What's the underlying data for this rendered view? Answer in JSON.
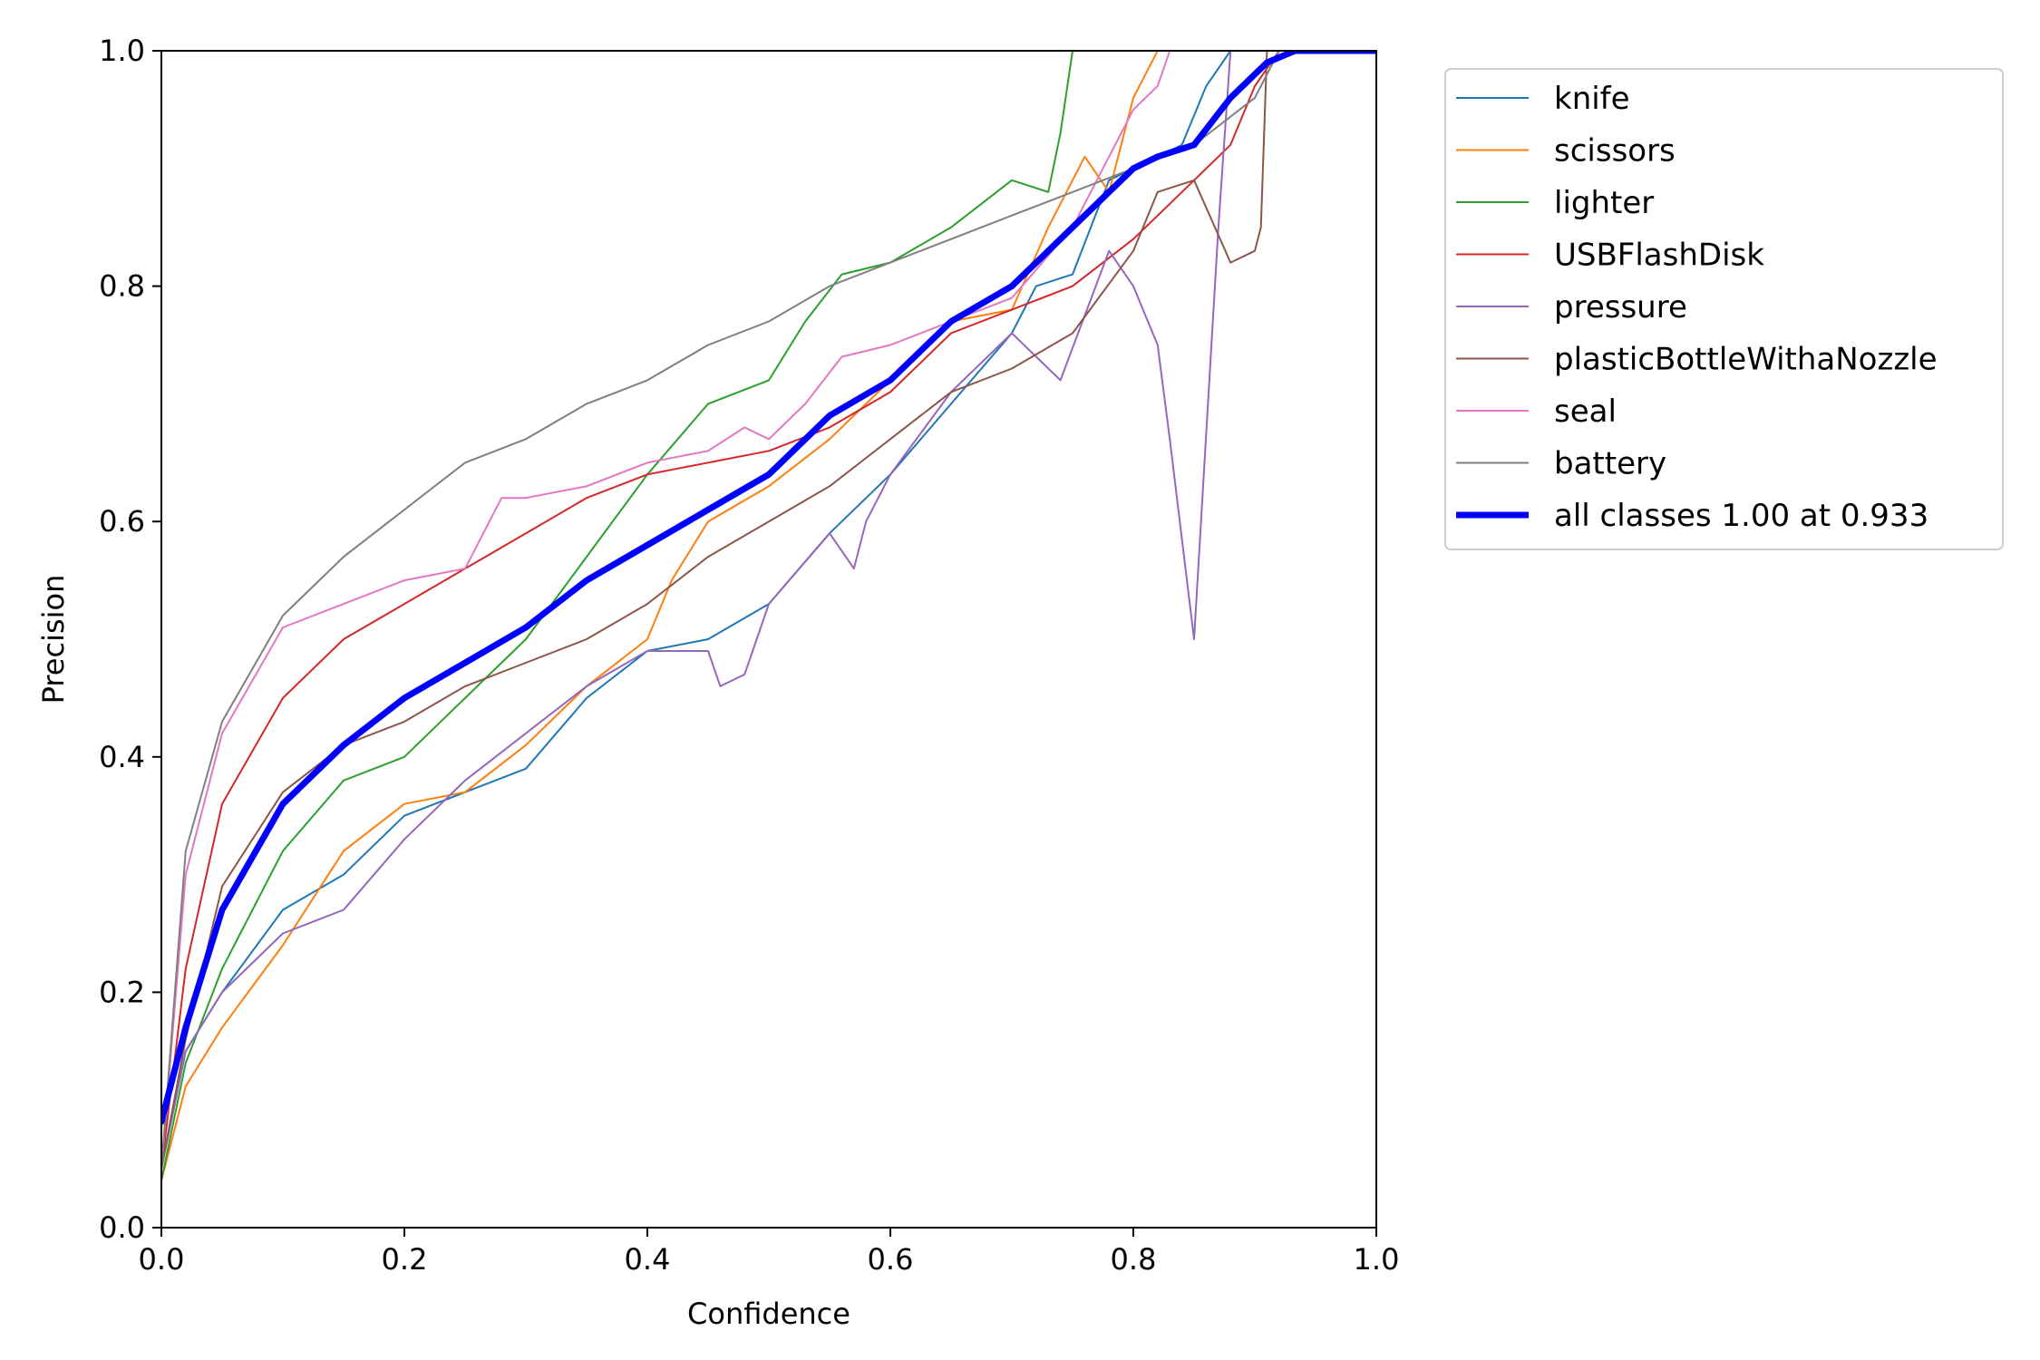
{
  "chart_data": {
    "type": "line",
    "xlabel": "Confidence",
    "ylabel": "Precision",
    "xlim": [
      0,
      1
    ],
    "ylim": [
      0,
      1
    ],
    "xticks": [
      "0.0",
      "0.2",
      "0.4",
      "0.6",
      "0.8",
      "1.0"
    ],
    "yticks": [
      "0.0",
      "0.2",
      "0.4",
      "0.6",
      "0.8",
      "1.0"
    ],
    "grid": false,
    "legend_position": "outside-right-top",
    "series": [
      {
        "name": "knife",
        "color": "#1f77b4",
        "width": 2,
        "points": [
          [
            0,
            0.05
          ],
          [
            0.02,
            0.15
          ],
          [
            0.05,
            0.2
          ],
          [
            0.1,
            0.27
          ],
          [
            0.15,
            0.3
          ],
          [
            0.2,
            0.35
          ],
          [
            0.25,
            0.37
          ],
          [
            0.3,
            0.39
          ],
          [
            0.35,
            0.45
          ],
          [
            0.4,
            0.49
          ],
          [
            0.45,
            0.5
          ],
          [
            0.5,
            0.53
          ],
          [
            0.55,
            0.59
          ],
          [
            0.6,
            0.64
          ],
          [
            0.65,
            0.7
          ],
          [
            0.7,
            0.76
          ],
          [
            0.72,
            0.8
          ],
          [
            0.75,
            0.81
          ],
          [
            0.78,
            0.89
          ],
          [
            0.8,
            0.9
          ],
          [
            0.84,
            0.92
          ],
          [
            0.86,
            0.97
          ],
          [
            0.88,
            1.0
          ],
          [
            1.0,
            1.0
          ]
        ]
      },
      {
        "name": "scissors",
        "color": "#ff7f0e",
        "width": 2,
        "points": [
          [
            0,
            0.04
          ],
          [
            0.02,
            0.12
          ],
          [
            0.05,
            0.17
          ],
          [
            0.1,
            0.24
          ],
          [
            0.15,
            0.32
          ],
          [
            0.2,
            0.36
          ],
          [
            0.25,
            0.37
          ],
          [
            0.3,
            0.41
          ],
          [
            0.35,
            0.46
          ],
          [
            0.4,
            0.5
          ],
          [
            0.42,
            0.55
          ],
          [
            0.45,
            0.6
          ],
          [
            0.5,
            0.63
          ],
          [
            0.55,
            0.67
          ],
          [
            0.6,
            0.72
          ],
          [
            0.65,
            0.77
          ],
          [
            0.7,
            0.78
          ],
          [
            0.73,
            0.85
          ],
          [
            0.76,
            0.91
          ],
          [
            0.78,
            0.88
          ],
          [
            0.8,
            0.96
          ],
          [
            0.82,
            1.0
          ],
          [
            1.0,
            1.0
          ]
        ]
      },
      {
        "name": "lighter",
        "color": "#2ca02c",
        "width": 2,
        "points": [
          [
            0,
            0.04
          ],
          [
            0.02,
            0.14
          ],
          [
            0.05,
            0.22
          ],
          [
            0.1,
            0.32
          ],
          [
            0.15,
            0.38
          ],
          [
            0.2,
            0.4
          ],
          [
            0.25,
            0.45
          ],
          [
            0.3,
            0.5
          ],
          [
            0.35,
            0.57
          ],
          [
            0.4,
            0.64
          ],
          [
            0.45,
            0.7
          ],
          [
            0.5,
            0.72
          ],
          [
            0.53,
            0.77
          ],
          [
            0.56,
            0.81
          ],
          [
            0.6,
            0.82
          ],
          [
            0.65,
            0.85
          ],
          [
            0.7,
            0.89
          ],
          [
            0.73,
            0.88
          ],
          [
            0.74,
            0.93
          ],
          [
            0.75,
            1.0
          ],
          [
            1.0,
            1.0
          ]
        ]
      },
      {
        "name": "USBFlashDisk",
        "color": "#d62728",
        "width": 2,
        "points": [
          [
            0,
            0.05
          ],
          [
            0.02,
            0.22
          ],
          [
            0.05,
            0.36
          ],
          [
            0.1,
            0.45
          ],
          [
            0.15,
            0.5
          ],
          [
            0.2,
            0.53
          ],
          [
            0.25,
            0.56
          ],
          [
            0.3,
            0.59
          ],
          [
            0.35,
            0.62
          ],
          [
            0.4,
            0.64
          ],
          [
            0.45,
            0.65
          ],
          [
            0.5,
            0.66
          ],
          [
            0.55,
            0.68
          ],
          [
            0.6,
            0.71
          ],
          [
            0.65,
            0.76
          ],
          [
            0.7,
            0.78
          ],
          [
            0.75,
            0.8
          ],
          [
            0.8,
            0.84
          ],
          [
            0.84,
            0.88
          ],
          [
            0.88,
            0.92
          ],
          [
            0.9,
            0.97
          ],
          [
            0.92,
            1.0
          ],
          [
            1.0,
            1.0
          ]
        ]
      },
      {
        "name": "pressure",
        "color": "#9467bd",
        "width": 2,
        "points": [
          [
            0,
            0.05
          ],
          [
            0.02,
            0.15
          ],
          [
            0.05,
            0.2
          ],
          [
            0.1,
            0.25
          ],
          [
            0.15,
            0.27
          ],
          [
            0.2,
            0.33
          ],
          [
            0.25,
            0.38
          ],
          [
            0.3,
            0.42
          ],
          [
            0.35,
            0.46
          ],
          [
            0.4,
            0.49
          ],
          [
            0.45,
            0.49
          ],
          [
            0.46,
            0.46
          ],
          [
            0.48,
            0.47
          ],
          [
            0.5,
            0.53
          ],
          [
            0.55,
            0.59
          ],
          [
            0.57,
            0.56
          ],
          [
            0.58,
            0.6
          ],
          [
            0.6,
            0.64
          ],
          [
            0.65,
            0.71
          ],
          [
            0.7,
            0.76
          ],
          [
            0.74,
            0.72
          ],
          [
            0.78,
            0.83
          ],
          [
            0.8,
            0.8
          ],
          [
            0.82,
            0.75
          ],
          [
            0.83,
            0.67
          ],
          [
            0.85,
            0.5
          ],
          [
            0.87,
            0.85
          ],
          [
            0.88,
            1.0
          ],
          [
            1.0,
            1.0
          ]
        ]
      },
      {
        "name": "plasticBottleWithaNozzle",
        "color": "#8c564b",
        "width": 2,
        "points": [
          [
            0,
            0.05
          ],
          [
            0.02,
            0.16
          ],
          [
            0.05,
            0.29
          ],
          [
            0.1,
            0.37
          ],
          [
            0.15,
            0.41
          ],
          [
            0.2,
            0.43
          ],
          [
            0.25,
            0.46
          ],
          [
            0.3,
            0.48
          ],
          [
            0.35,
            0.5
          ],
          [
            0.4,
            0.53
          ],
          [
            0.45,
            0.57
          ],
          [
            0.5,
            0.6
          ],
          [
            0.55,
            0.63
          ],
          [
            0.6,
            0.67
          ],
          [
            0.65,
            0.71
          ],
          [
            0.7,
            0.73
          ],
          [
            0.75,
            0.76
          ],
          [
            0.8,
            0.83
          ],
          [
            0.82,
            0.88
          ],
          [
            0.85,
            0.89
          ],
          [
            0.88,
            0.82
          ],
          [
            0.9,
            0.83
          ],
          [
            0.905,
            0.85
          ],
          [
            0.91,
            1.0
          ],
          [
            1.0,
            1.0
          ]
        ]
      },
      {
        "name": "seal",
        "color": "#e377c2",
        "width": 2,
        "points": [
          [
            0,
            0.05
          ],
          [
            0.02,
            0.3
          ],
          [
            0.05,
            0.42
          ],
          [
            0.1,
            0.51
          ],
          [
            0.15,
            0.53
          ],
          [
            0.2,
            0.55
          ],
          [
            0.25,
            0.56
          ],
          [
            0.28,
            0.62
          ],
          [
            0.3,
            0.62
          ],
          [
            0.35,
            0.63
          ],
          [
            0.4,
            0.65
          ],
          [
            0.45,
            0.66
          ],
          [
            0.48,
            0.68
          ],
          [
            0.5,
            0.67
          ],
          [
            0.53,
            0.7
          ],
          [
            0.56,
            0.74
          ],
          [
            0.6,
            0.75
          ],
          [
            0.65,
            0.77
          ],
          [
            0.7,
            0.79
          ],
          [
            0.75,
            0.85
          ],
          [
            0.8,
            0.95
          ],
          [
            0.82,
            0.97
          ],
          [
            0.83,
            1.0
          ],
          [
            1.0,
            1.0
          ]
        ]
      },
      {
        "name": "battery",
        "color": "#7f7f7f",
        "width": 2,
        "points": [
          [
            0,
            0.05
          ],
          [
            0.02,
            0.32
          ],
          [
            0.05,
            0.43
          ],
          [
            0.1,
            0.52
          ],
          [
            0.15,
            0.57
          ],
          [
            0.2,
            0.61
          ],
          [
            0.25,
            0.65
          ],
          [
            0.3,
            0.67
          ],
          [
            0.35,
            0.7
          ],
          [
            0.4,
            0.72
          ],
          [
            0.45,
            0.75
          ],
          [
            0.5,
            0.77
          ],
          [
            0.55,
            0.8
          ],
          [
            0.6,
            0.82
          ],
          [
            0.65,
            0.84
          ],
          [
            0.7,
            0.86
          ],
          [
            0.75,
            0.88
          ],
          [
            0.8,
            0.9
          ],
          [
            0.85,
            0.92
          ],
          [
            0.9,
            0.96
          ],
          [
            0.92,
            1.0
          ],
          [
            1.0,
            1.0
          ]
        ]
      },
      {
        "name": "all classes 1.00 at 0.933",
        "color": "#0000ff",
        "width": 7,
        "points": [
          [
            0,
            0.09
          ],
          [
            0.02,
            0.17
          ],
          [
            0.05,
            0.27
          ],
          [
            0.1,
            0.36
          ],
          [
            0.15,
            0.41
          ],
          [
            0.2,
            0.45
          ],
          [
            0.25,
            0.48
          ],
          [
            0.3,
            0.51
          ],
          [
            0.35,
            0.55
          ],
          [
            0.4,
            0.58
          ],
          [
            0.45,
            0.61
          ],
          [
            0.5,
            0.64
          ],
          [
            0.55,
            0.69
          ],
          [
            0.6,
            0.72
          ],
          [
            0.65,
            0.77
          ],
          [
            0.7,
            0.8
          ],
          [
            0.75,
            0.85
          ],
          [
            0.8,
            0.9
          ],
          [
            0.82,
            0.91
          ],
          [
            0.85,
            0.92
          ],
          [
            0.88,
            0.96
          ],
          [
            0.91,
            0.99
          ],
          [
            0.933,
            1.0
          ],
          [
            1.0,
            1.0
          ]
        ]
      }
    ]
  }
}
